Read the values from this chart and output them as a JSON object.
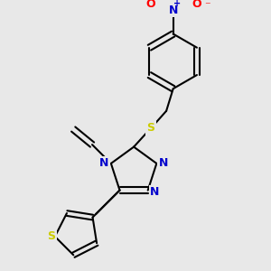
{
  "background_color": "#e8e8e8",
  "bond_color": "#000000",
  "N_color": "#0000cc",
  "S_color": "#cccc00",
  "O_color": "#ff0000",
  "bond_width": 1.5,
  "figsize": [
    3.0,
    3.0
  ],
  "dpi": 100,
  "xlim": [
    0,
    300
  ],
  "ylim": [
    0,
    300
  ]
}
